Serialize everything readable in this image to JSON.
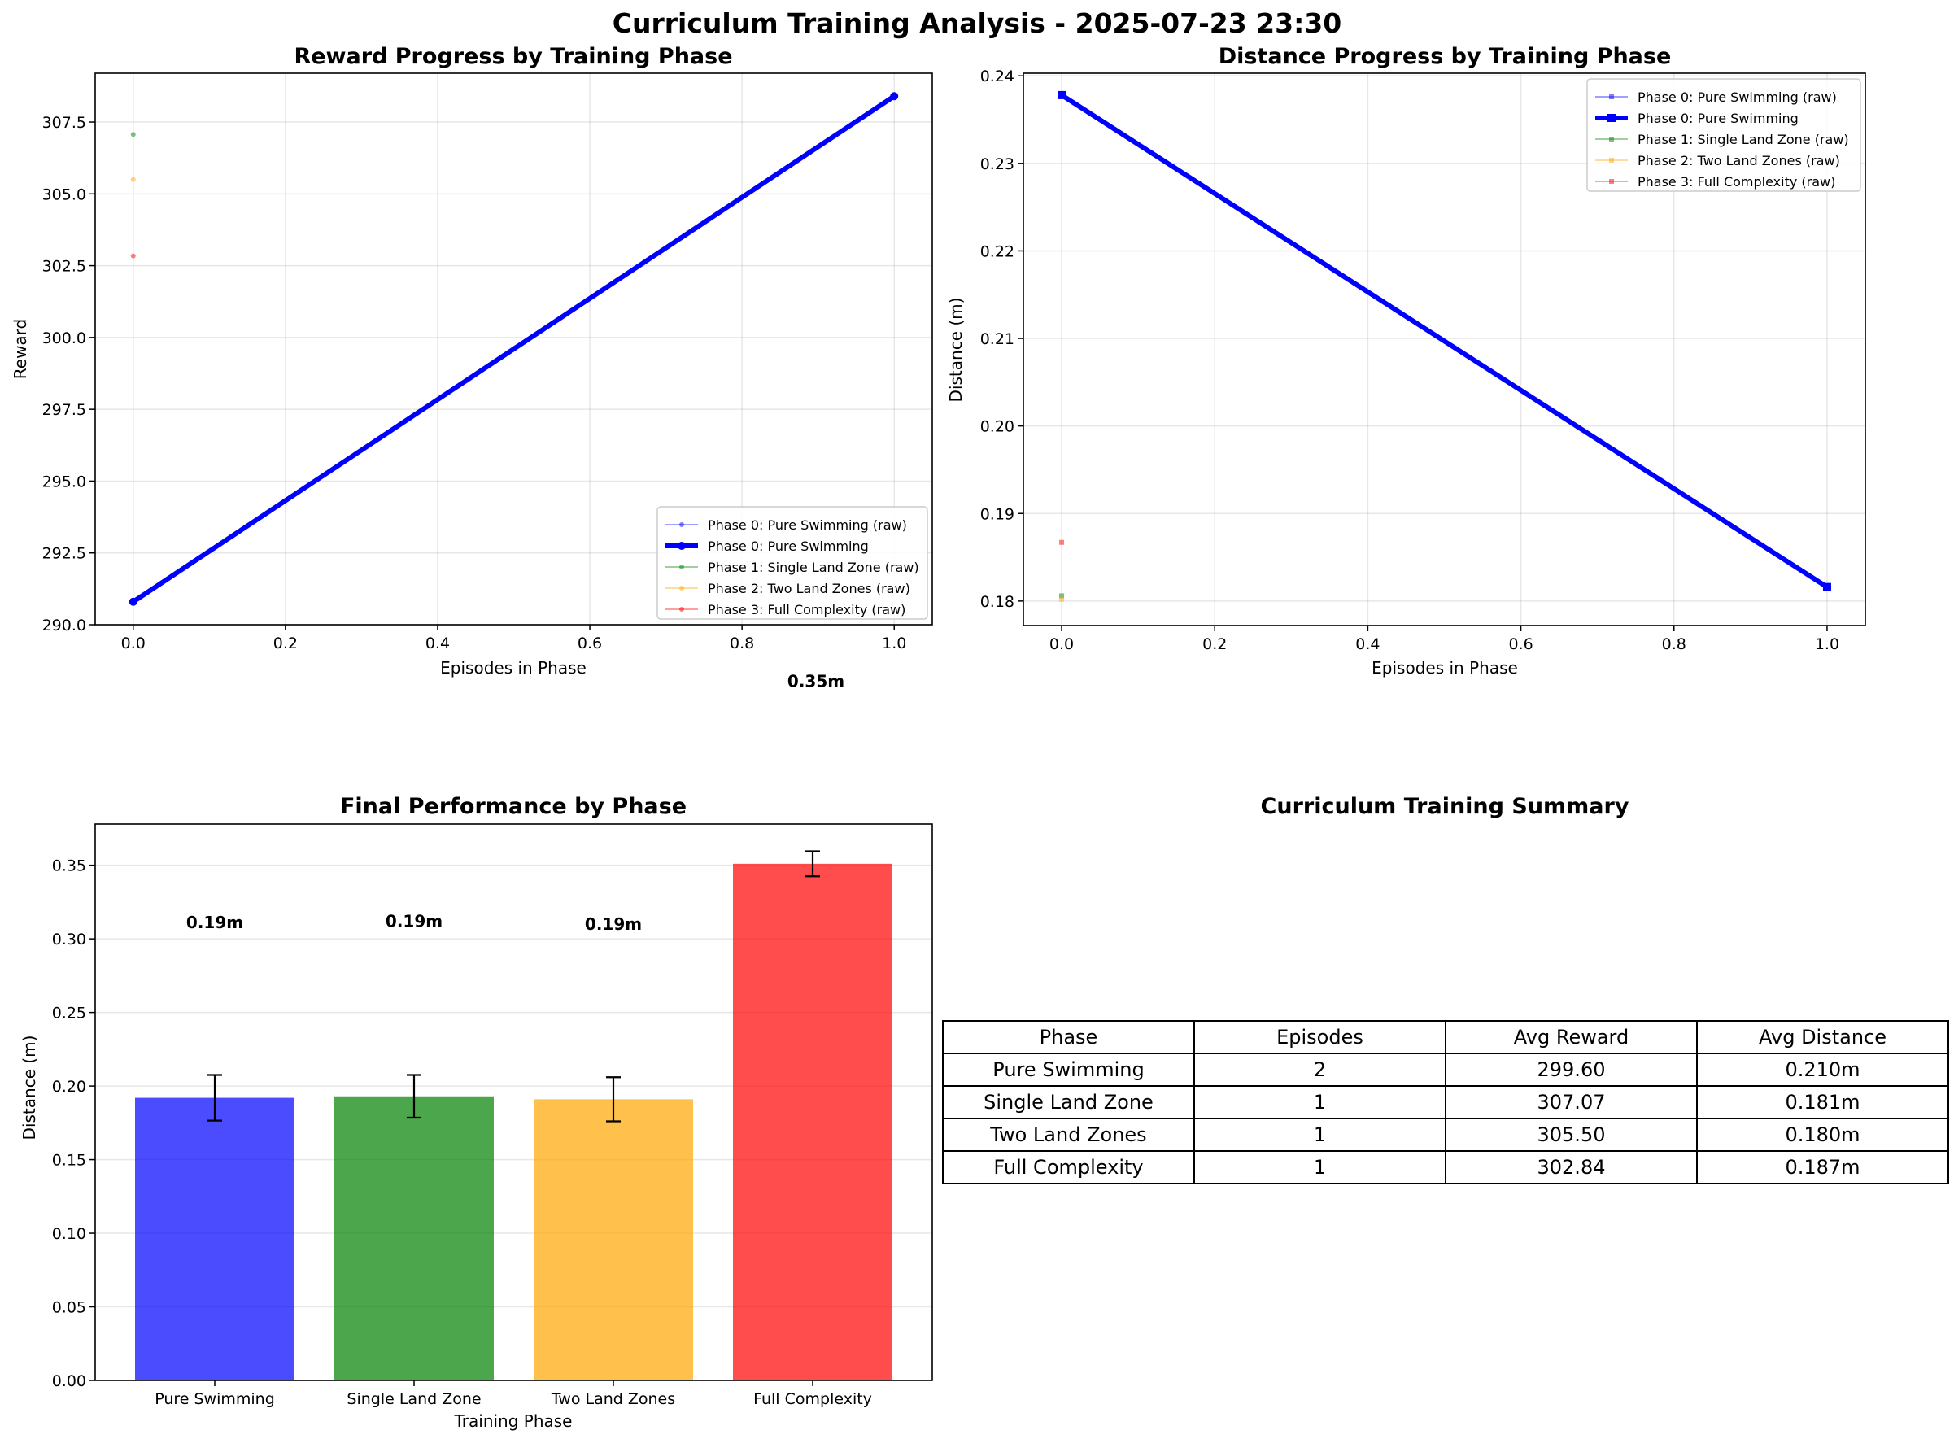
{
  "figure_title": "Curriculum Training Analysis - 2025-07-23 23:30",
  "colors": {
    "phase0": "#0000ff",
    "phase1": "#008000",
    "phase2": "#ffa500",
    "phase3": "#ff0000"
  },
  "chart_data": [
    {
      "type": "line",
      "title": "Reward Progress by Training Phase",
      "xlabel": "Episodes in Phase",
      "ylabel": "Reward",
      "xlim": [
        -0.05,
        1.05
      ],
      "ylim": [
        290.0,
        309.2
      ],
      "xticks": [
        "0.0",
        "0.2",
        "0.4",
        "0.6",
        "0.8",
        "1.0"
      ],
      "yticks": [
        "290.0",
        "292.5",
        "295.0",
        "297.5",
        "300.0",
        "302.5",
        "305.0",
        "307.5"
      ],
      "grid": true,
      "legend_position": "lower right",
      "series": [
        {
          "name": "Phase 0: Pure Swimming (raw)",
          "x": [
            0,
            1
          ],
          "y": [
            290.8,
            308.4
          ],
          "style": "raw",
          "color": "#0000ff"
        },
        {
          "name": "Phase 0: Pure Swimming",
          "x": [
            0,
            1
          ],
          "y": [
            290.8,
            308.4
          ],
          "style": "smoothed",
          "color": "#0000ff"
        },
        {
          "name": "Phase 1: Single Land Zone (raw)",
          "x": [
            0
          ],
          "y": [
            307.07
          ],
          "style": "raw",
          "color": "#008000"
        },
        {
          "name": "Phase 2: Two Land Zones (raw)",
          "x": [
            0
          ],
          "y": [
            305.5
          ],
          "style": "raw",
          "color": "#ffa500"
        },
        {
          "name": "Phase 3: Full Complexity (raw)",
          "x": [
            0
          ],
          "y": [
            302.84
          ],
          "style": "raw",
          "color": "#ff0000"
        }
      ]
    },
    {
      "type": "line",
      "title": "Distance Progress by Training Phase",
      "xlabel": "Episodes in Phase",
      "ylabel": "Distance (m)",
      "xlim": [
        -0.05,
        1.05
      ],
      "ylim": [
        0.1772,
        0.2403
      ],
      "xticks": [
        "0.0",
        "0.2",
        "0.4",
        "0.6",
        "0.8",
        "1.0"
      ],
      "yticks": [
        "0.18",
        "0.19",
        "0.20",
        "0.21",
        "0.22",
        "0.23",
        "0.24"
      ],
      "grid": true,
      "legend_position": "upper right",
      "series": [
        {
          "name": "Phase 0: Pure Swimming (raw)",
          "x": [
            0,
            1
          ],
          "y": [
            0.2378,
            0.1816
          ],
          "style": "raw",
          "color": "#0000ff"
        },
        {
          "name": "Phase 0: Pure Swimming",
          "x": [
            0,
            1
          ],
          "y": [
            0.2378,
            0.1816
          ],
          "style": "smoothed",
          "color": "#0000ff"
        },
        {
          "name": "Phase 1: Single Land Zone (raw)",
          "x": [
            0
          ],
          "y": [
            0.1806
          ],
          "style": "raw",
          "color": "#008000"
        },
        {
          "name": "Phase 2: Two Land Zones (raw)",
          "x": [
            0
          ],
          "y": [
            0.1802
          ],
          "style": "raw",
          "color": "#ffa500"
        },
        {
          "name": "Phase 3: Full Complexity (raw)",
          "x": [
            0
          ],
          "y": [
            0.1867
          ],
          "style": "raw",
          "color": "#ff0000"
        }
      ]
    },
    {
      "type": "bar",
      "title": "Final Performance by Phase",
      "xlabel": "Training Phase",
      "ylabel": "Distance (m)",
      "categories": [
        "Pure Swimming",
        "Single Land Zone",
        "Two Land Zones",
        "Full Complexity"
      ],
      "values": [
        0.192,
        0.193,
        0.191,
        0.351
      ],
      "errors": [
        0.0155,
        0.0145,
        0.015,
        0.0085
      ],
      "value_labels": [
        "0.19m",
        "0.19m",
        "0.19m",
        "0.35m"
      ],
      "colors": [
        "#0000ff",
        "#008000",
        "#ffa500",
        "#ff0000"
      ],
      "ylim": [
        0,
        0.378
      ],
      "yticks": [
        "0.00",
        "0.05",
        "0.10",
        "0.15",
        "0.20",
        "0.25",
        "0.30",
        "0.35"
      ],
      "grid": true
    }
  ],
  "summary": {
    "title": "Curriculum Training Summary",
    "columns": [
      "Phase",
      "Episodes",
      "Avg Reward",
      "Avg Distance"
    ],
    "rows": [
      [
        "Pure Swimming",
        "2",
        "299.60",
        "0.210m"
      ],
      [
        "Single Land Zone",
        "1",
        "307.07",
        "0.181m"
      ],
      [
        "Two Land Zones",
        "1",
        "305.50",
        "0.180m"
      ],
      [
        "Full Complexity",
        "1",
        "302.84",
        "0.187m"
      ]
    ]
  }
}
